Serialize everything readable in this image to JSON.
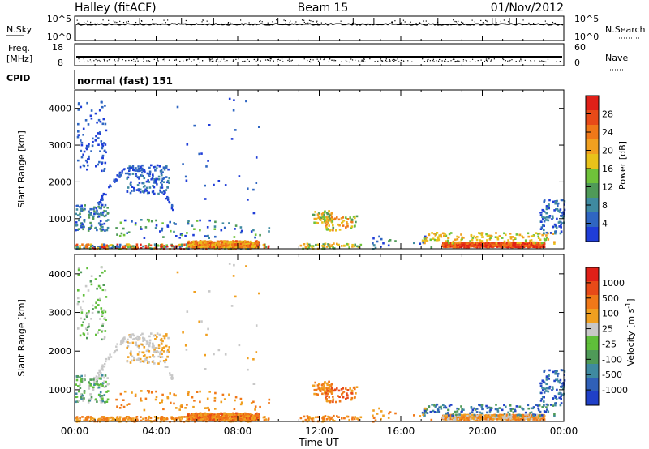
{
  "header": {
    "title": "Halley (fitACF)",
    "beam": "Beam 15",
    "date": "01/Nov/2012"
  },
  "strips": {
    "nsky_label": "N.Sky",
    "nsky_ticks": [
      "10^5",
      "10^0"
    ],
    "nsearch_label": "N.Search",
    "nsearch_ticks": [
      "10^5",
      "10^0"
    ],
    "freq_label": "Freq.",
    "freq_unit": "[MHz]",
    "freq_ticks": [
      "18",
      "8"
    ],
    "nave_label": "Nave",
    "nave_ticks": [
      "60",
      "0"
    ],
    "cpid_label": "CPID",
    "cpid_value": "normal (fast) 151"
  },
  "chart_data": [
    {
      "type": "heatmap",
      "name": "power",
      "ylabel": "Slant Range [km]",
      "xlabel": "Time UT",
      "x_ticks": [
        "00:00",
        "04:00",
        "08:00",
        "12:00",
        "16:00",
        "20:00",
        "00:00"
      ],
      "xlim_hours": [
        0,
        24
      ],
      "ylim_km": [
        180,
        4500
      ],
      "y_ticks": [
        1000,
        2000,
        3000,
        4000
      ],
      "colorbar": {
        "label": "Power [dB]",
        "ticks": [
          "4",
          "8",
          "12",
          "16",
          "20",
          "24",
          "28"
        ],
        "colors": [
          "#1f3dd8",
          "#2f66c2",
          "#3f8aa0",
          "#4f9a58",
          "#6fc23a",
          "#e8c21a",
          "#f0a020",
          "#f07818",
          "#e84a18",
          "#e02018"
        ]
      }
    },
    {
      "type": "heatmap",
      "name": "velocity",
      "ylabel": "Slant Range [km]",
      "xlabel": "Time UT",
      "x_ticks": [
        "00:00",
        "04:00",
        "08:00",
        "12:00",
        "16:00",
        "20:00",
        "00:00"
      ],
      "xlim_hours": [
        0,
        24
      ],
      "ylim_km": [
        180,
        4500
      ],
      "y_ticks": [
        1000,
        2000,
        3000,
        4000
      ],
      "colorbar": {
        "label": "Velocity [m s^-1]",
        "ticks": [
          "1000",
          "500",
          "100",
          "25",
          "-25",
          "-100",
          "-500",
          "-1000"
        ],
        "colors": [
          "#2040c8",
          "#3060b8",
          "#3f8aa0",
          "#4f9a58",
          "#5fbf3a",
          "#c8c8c8",
          "#f0a020",
          "#f07818",
          "#e84a18",
          "#e02018"
        ]
      }
    }
  ]
}
